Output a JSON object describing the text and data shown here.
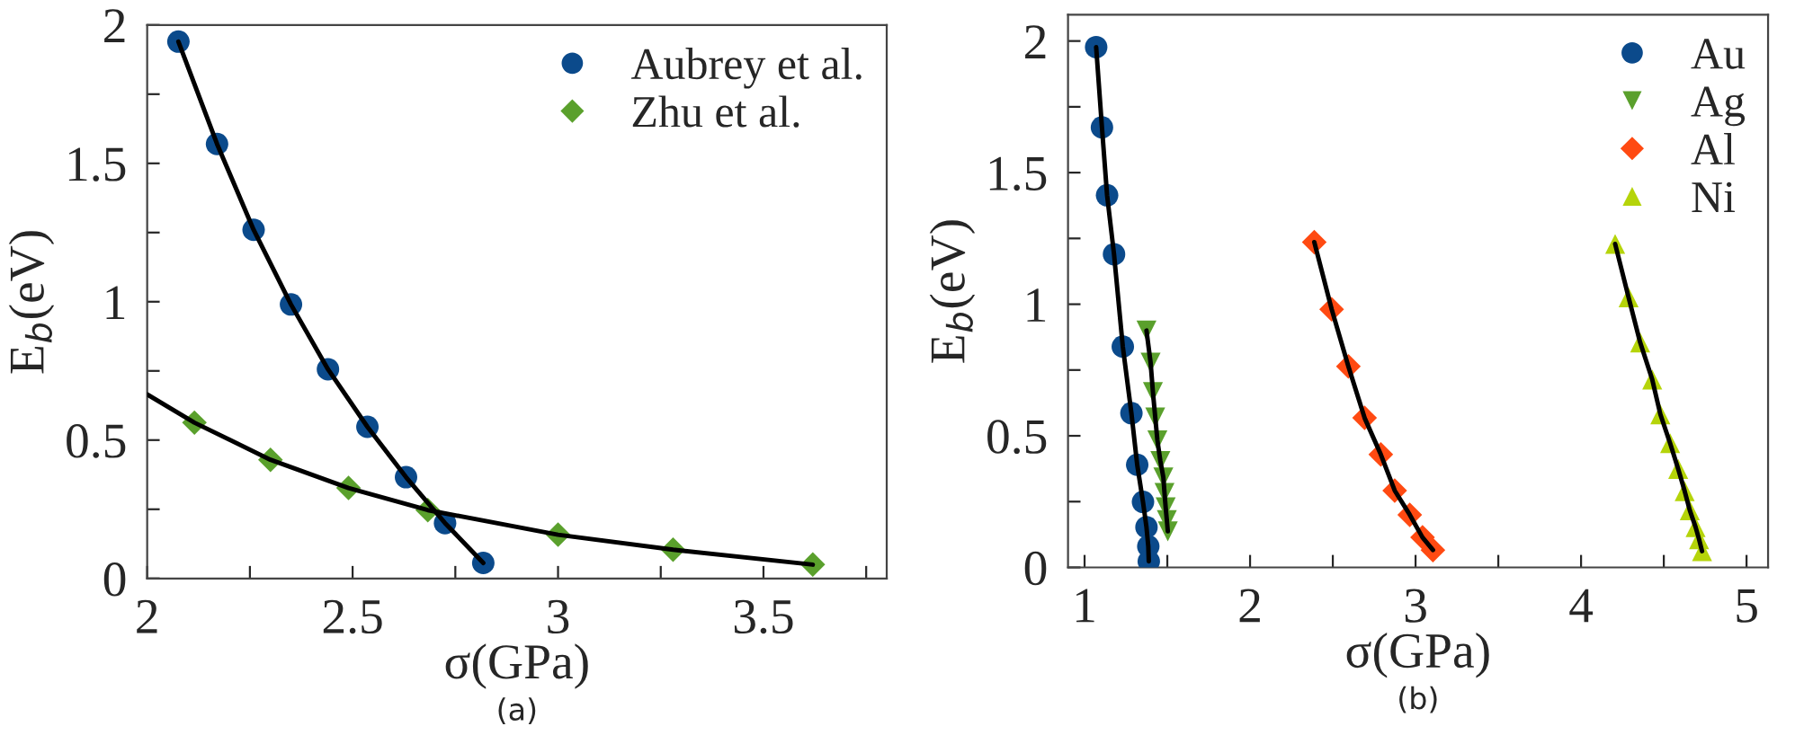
{
  "chart_data": [
    {
      "type": "scatter",
      "xlabel": "σ(GPa)",
      "ylabel": "E$_{b}$(eV)",
      "annotations": [
        "(a)"
      ],
      "legend": "top right",
      "xlim": [
        2,
        3.8
      ],
      "xticks": [
        2,
        {
          "value": 2.25,
          "label": null
        },
        2.5,
        {
          "value": 2.75,
          "label": null
        },
        3,
        {
          "value": 3.25,
          "label": null
        },
        3.5,
        {
          "value": 3.75,
          "label": null
        }
      ],
      "ylim": [
        0,
        2
      ],
      "yticks": [
        0,
        {
          "value": 0.25,
          "label": null
        },
        0.5,
        {
          "value": 0.75,
          "label": null
        },
        1,
        {
          "value": 1.25,
          "label": null
        },
        1.5,
        {
          "value": 1.75,
          "label": null
        },
        2
      ],
      "series": [
        {
          "type": "line",
          "color": "#000000",
          "marker": "none",
          "x": [
            2.076,
            2.17,
            2.259,
            2.35,
            2.44,
            2.536,
            2.63,
            2.725,
            2.818
          ],
          "values": [
            1.94,
            1.57,
            1.26,
            0.99,
            0.756,
            0.548,
            0.366,
            0.2,
            0.056
          ]
        },
        {
          "type": "line",
          "color": "#000000",
          "marker": "none",
          "x": [
            2.0,
            2.115,
            2.3,
            2.49,
            2.683,
            3.0,
            3.28,
            3.62
          ],
          "values": [
            0.665,
            0.563,
            0.429,
            0.327,
            0.247,
            0.158,
            0.104,
            0.05
          ]
        },
        {
          "name": "Aubrey et al.",
          "color": "#0b4a8b",
          "marker": "circle",
          "x": [
            2.076,
            2.17,
            2.259,
            2.35,
            2.44,
            2.536,
            2.63,
            2.725,
            2.818
          ],
          "values": [
            1.94,
            1.57,
            1.26,
            0.99,
            0.756,
            0.548,
            0.366,
            0.2,
            0.056
          ]
        },
        {
          "name": "Zhu et al.",
          "color": "#5aa02c",
          "marker": "diamond",
          "x": [
            2.115,
            2.3,
            2.49,
            2.683,
            3.0,
            3.28,
            3.62
          ],
          "values": [
            0.563,
            0.429,
            0.327,
            0.247,
            0.158,
            0.104,
            0.05
          ]
        }
      ]
    },
    {
      "type": "scatter",
      "xlabel": "σ(GPa)",
      "ylabel": "E$_{b}$(eV)",
      "annotations": [
        "(b)"
      ],
      "legend": "top right",
      "xlim": [
        0.9,
        5.13
      ],
      "xticks": [
        1,
        {
          "value": 1.5,
          "label": null
        },
        2,
        {
          "value": 2.5,
          "label": null
        },
        3,
        {
          "value": 3.5,
          "label": null
        },
        4,
        {
          "value": 4.5,
          "label": null
        },
        5
      ],
      "ylim": [
        0,
        2.1
      ],
      "yticks": [
        0,
        {
          "value": 0.25,
          "label": null
        },
        0.5,
        {
          "value": 0.75,
          "label": null
        },
        1,
        {
          "value": 1.25,
          "label": null
        },
        1.5,
        {
          "value": 1.75,
          "label": null
        },
        2
      ],
      "series": [
        {
          "type": "line",
          "color": "#000000",
          "marker": "none",
          "x": [
            1.07,
            1.105,
            1.136,
            1.178,
            1.231,
            1.283,
            1.318,
            1.353,
            1.374,
            1.385,
            1.388
          ],
          "values": [
            1.977,
            1.672,
            1.414,
            1.19,
            0.839,
            0.586,
            0.39,
            0.249,
            0.153,
            0.08,
            0.023
          ]
        },
        {
          "type": "line",
          "color": "#000000",
          "marker": "none",
          "x": [
            1.374,
            1.399,
            1.413,
            1.427,
            1.44,
            1.458,
            1.476,
            1.483,
            1.49,
            1.497,
            1.503
          ],
          "values": [
            0.9,
            0.778,
            0.666,
            0.57,
            0.483,
            0.404,
            0.342,
            0.283,
            0.228,
            0.18,
            0.137
          ]
        },
        {
          "type": "line",
          "color": "#000000",
          "marker": "none",
          "x": [
            2.388,
            2.493,
            2.594,
            2.692,
            2.79,
            2.874,
            2.965,
            3.042,
            3.105
          ],
          "values": [
            1.236,
            0.981,
            0.764,
            0.568,
            0.429,
            0.292,
            0.2,
            0.114,
            0.066
          ]
        },
        {
          "type": "line",
          "color": "#000000",
          "marker": "none",
          "x": [
            4.206,
            4.287,
            4.357,
            4.43,
            4.479,
            4.538,
            4.587,
            4.626,
            4.657,
            4.692,
            4.713,
            4.731
          ],
          "values": [
            1.229,
            1.026,
            0.855,
            0.714,
            0.582,
            0.472,
            0.374,
            0.29,
            0.217,
            0.153,
            0.107,
            0.062
          ]
        },
        {
          "name": "Au",
          "color": "#0b4a8b",
          "marker": "circle",
          "x": [
            1.07,
            1.105,
            1.136,
            1.178,
            1.231,
            1.283,
            1.318,
            1.353,
            1.374,
            1.385,
            1.388
          ],
          "values": [
            1.977,
            1.672,
            1.414,
            1.19,
            0.839,
            0.586,
            0.39,
            0.249,
            0.153,
            0.08,
            0.023
          ]
        },
        {
          "name": "Ag",
          "color": "#5aa02c",
          "marker": "triangle_down",
          "x": [
            1.374,
            1.399,
            1.413,
            1.427,
            1.44,
            1.458,
            1.476,
            1.483,
            1.49,
            1.497,
            1.503
          ],
          "values": [
            0.9,
            0.778,
            0.666,
            0.57,
            0.483,
            0.404,
            0.342,
            0.283,
            0.228,
            0.18,
            0.137
          ]
        },
        {
          "name": "Al",
          "color": "#ff4a12",
          "marker": "diamond",
          "x": [
            2.388,
            2.493,
            2.594,
            2.692,
            2.79,
            2.874,
            2.965,
            3.042,
            3.105
          ],
          "values": [
            1.236,
            0.981,
            0.764,
            0.568,
            0.429,
            0.292,
            0.2,
            0.114,
            0.066
          ]
        },
        {
          "name": "Ni",
          "color": "#b5d40a",
          "marker": "triangle",
          "x": [
            4.206,
            4.287,
            4.357,
            4.43,
            4.479,
            4.538,
            4.587,
            4.626,
            4.657,
            4.692,
            4.713,
            4.731
          ],
          "values": [
            1.229,
            1.026,
            0.855,
            0.714,
            0.582,
            0.472,
            0.374,
            0.29,
            0.217,
            0.153,
            0.107,
            0.062
          ]
        }
      ]
    }
  ]
}
